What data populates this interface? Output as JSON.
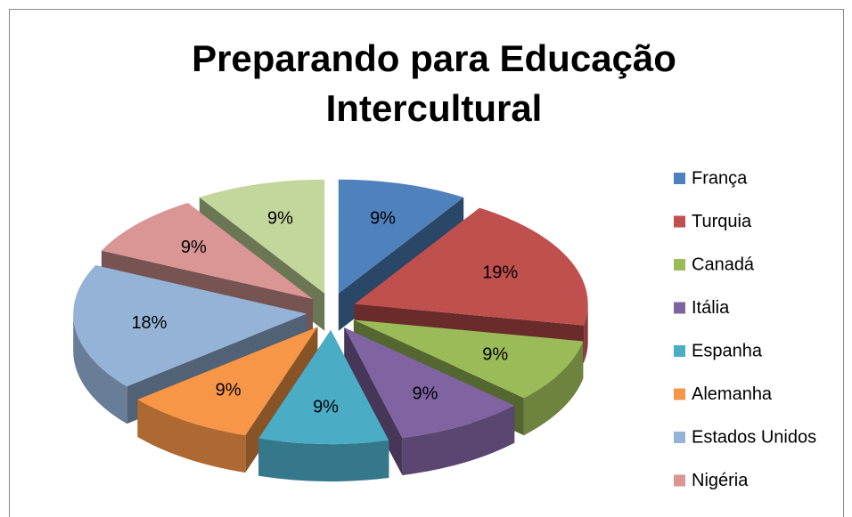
{
  "chart_data": {
    "type": "pie",
    "title": "Preparando para Educação Intercultural",
    "categories": [
      "França",
      "Turquia",
      "Canadá",
      "Itália",
      "Espanha",
      "Alemanha",
      "Estados Unidos",
      "Nigéria",
      null
    ],
    "values": [
      9,
      19,
      9,
      9,
      9,
      9,
      18,
      9,
      9
    ],
    "value_labels": [
      "9%",
      "19%",
      "9%",
      "9%",
      "9%",
      "9%",
      "18%",
      "9%",
      "9%"
    ],
    "colors": [
      "#4f81bd",
      "#c0504d",
      "#9bbb59",
      "#8064a2",
      "#4bacc6",
      "#f79646",
      "#95b3d7",
      "#d99694",
      "#c3d69b"
    ],
    "legend": "right",
    "exploded": true,
    "three_d": true
  }
}
